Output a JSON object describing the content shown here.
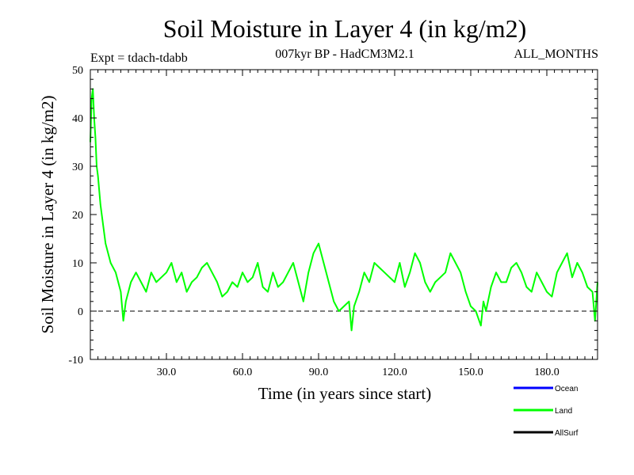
{
  "chart_data": {
    "type": "line",
    "title": "Soil Moisture in Layer 4 (in kg/m2)",
    "subtitle_left": "Expt = tdach-tdabb",
    "subtitle_center": "007kyr BP - HadCM3M2.1",
    "subtitle_right": "ALL_MONTHS",
    "xlabel": "Time (in years since start)",
    "ylabel": "Soil Moisture in Layer 4 (in kg/m2)",
    "xlim": [
      0,
      200
    ],
    "ylim": [
      -10,
      50
    ],
    "xticks": [
      30,
      60,
      90,
      120,
      150,
      180
    ],
    "xtick_labels": [
      "30.0",
      "60.0",
      "90.0",
      "120.0",
      "150.0",
      "180.0"
    ],
    "yticks": [
      -10,
      0,
      10,
      20,
      30,
      40,
      50
    ],
    "ytick_labels": [
      "-10",
      "0",
      "10",
      "20",
      "30",
      "40",
      "50"
    ],
    "reference_line": {
      "y": 0,
      "style": "dashed"
    },
    "series": [
      {
        "name": "Ocean",
        "color": "#0000ff",
        "x": [],
        "values": []
      },
      {
        "name": "Land",
        "color": "#00ff00",
        "x": [
          0,
          0.5,
          1,
          1.5,
          2,
          2.5,
          3,
          4,
          5,
          6,
          8,
          10,
          12,
          13,
          14,
          16,
          18,
          20,
          22,
          24,
          26,
          28,
          30,
          32,
          34,
          36,
          38,
          40,
          42,
          44,
          46,
          48,
          50,
          52,
          54,
          56,
          58,
          60,
          62,
          64,
          66,
          68,
          70,
          72,
          74,
          76,
          78,
          80,
          82,
          84,
          86,
          88,
          90,
          92,
          94,
          96,
          98,
          100,
          102,
          103,
          104,
          106,
          108,
          110,
          112,
          114,
          116,
          118,
          120,
          122,
          124,
          126,
          128,
          130,
          132,
          134,
          136,
          138,
          140,
          142,
          144,
          146,
          148,
          150,
          152,
          154,
          155,
          156,
          158,
          160,
          162,
          164,
          166,
          168,
          170,
          172,
          174,
          176,
          178,
          180,
          182,
          184,
          186,
          188,
          190,
          192,
          194,
          196,
          198,
          199,
          200
        ],
        "values": [
          35,
          44,
          46,
          40,
          36,
          30,
          28,
          22,
          18,
          14,
          10,
          8,
          4,
          -2,
          2,
          6,
          8,
          6,
          4,
          8,
          6,
          7,
          8,
          10,
          6,
          8,
          4,
          6,
          7,
          9,
          10,
          8,
          6,
          3,
          4,
          6,
          5,
          8,
          6,
          7,
          10,
          5,
          4,
          8,
          5,
          6,
          8,
          10,
          6,
          2,
          8,
          12,
          14,
          10,
          6,
          2,
          0,
          1,
          2,
          -4,
          1,
          4,
          8,
          6,
          10,
          9,
          8,
          7,
          6,
          10,
          5,
          8,
          12,
          10,
          6,
          4,
          6,
          7,
          8,
          12,
          10,
          8,
          4,
          1,
          0,
          -3,
          2,
          0,
          5,
          8,
          6,
          6,
          9,
          10,
          8,
          5,
          4,
          8,
          6,
          4,
          3,
          8,
          10,
          12,
          7,
          10,
          8,
          5,
          4,
          -2,
          6
        ]
      },
      {
        "name": "AllSurf",
        "color": "#000000",
        "x": [],
        "values": []
      }
    ]
  }
}
